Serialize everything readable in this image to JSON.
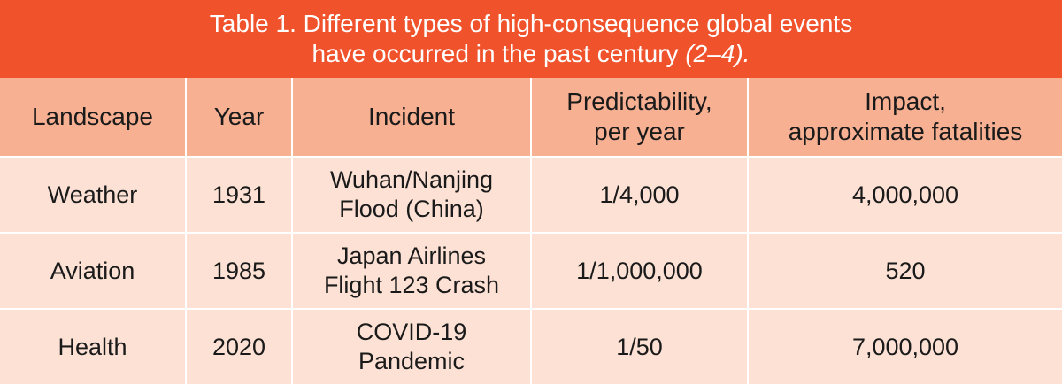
{
  "caption": {
    "line1": "Table 1. Different types of high-consequence global events",
    "line2_text": "have occurred in the past century ",
    "line2_cite": "(2–4)."
  },
  "columns": [
    {
      "lines": [
        "Landscape"
      ]
    },
    {
      "lines": [
        "Year"
      ]
    },
    {
      "lines": [
        "Incident"
      ]
    },
    {
      "lines": [
        "Predictability,",
        "per year"
      ]
    },
    {
      "lines": [
        "Impact,",
        "approximate fatalities"
      ]
    }
  ],
  "rows": [
    {
      "landscape": "Weather",
      "year": "1931",
      "incident_l1": "Wuhan/Nanjing",
      "incident_l2": "Flood (China)",
      "predictability": "1/4,000",
      "impact": "4,000,000"
    },
    {
      "landscape": "Aviation",
      "year": "1985",
      "incident_l1": "Japan Airlines",
      "incident_l2": "Flight 123 Crash",
      "predictability": "1/1,000,000",
      "impact": "520"
    },
    {
      "landscape": "Health",
      "year": "2020",
      "incident_l1": "COVID-19",
      "incident_l2": "Pandemic",
      "predictability": "1/50",
      "impact": "7,000,000"
    }
  ],
  "colors": {
    "caption_bg": "#f0522b",
    "header_bg": "#f7b092",
    "body_bg": "#fce1d4",
    "caption_text": "#ffffff",
    "body_text": "#1a1a1a"
  }
}
